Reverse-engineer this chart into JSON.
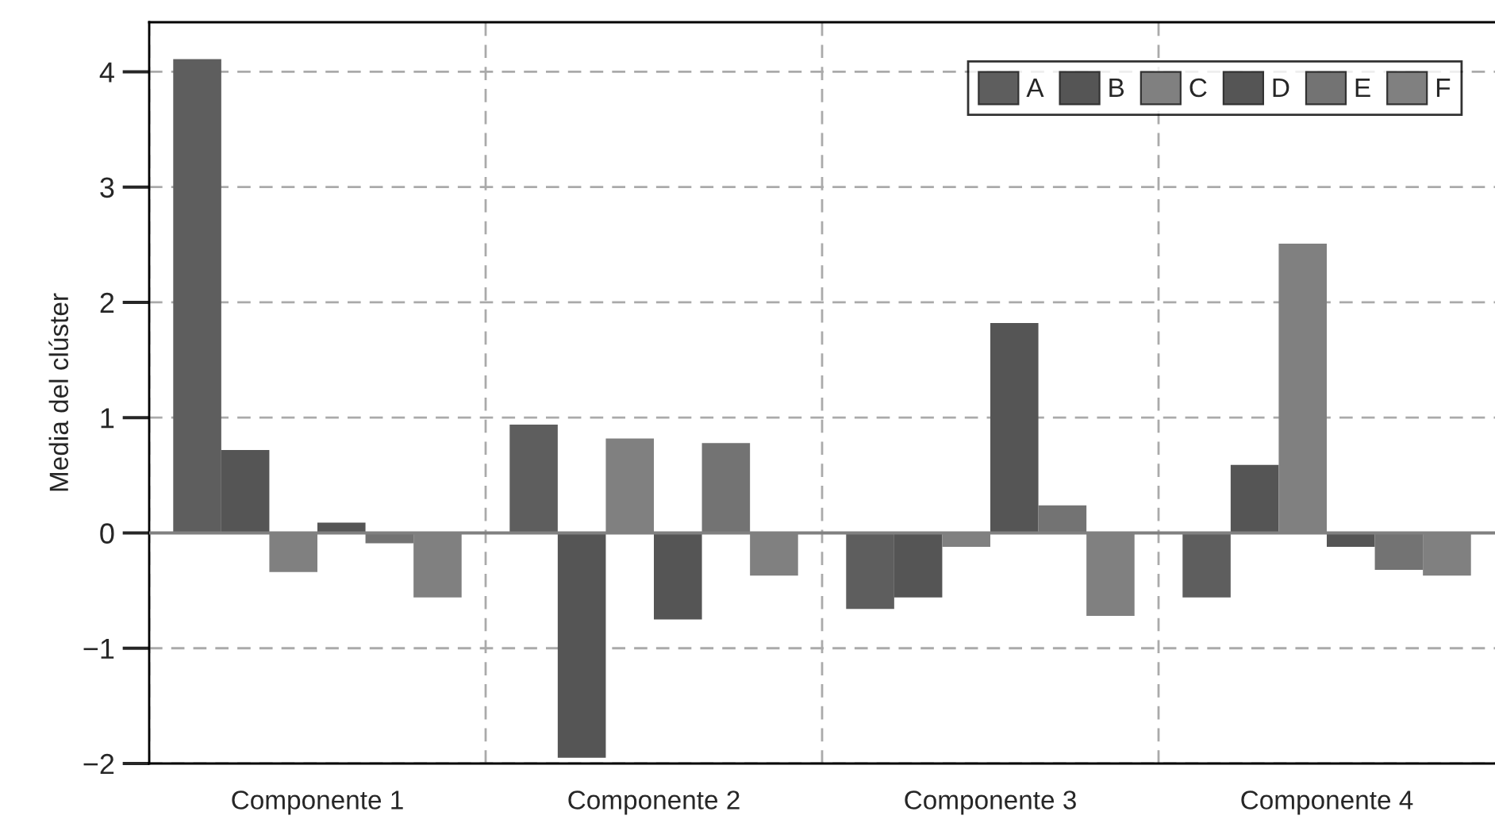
{
  "chart_data": {
    "type": "bar",
    "ylabel": "Media del clúster",
    "categories": [
      "Componente 1",
      "Componente 2",
      "Componente 3",
      "Componente 4"
    ],
    "series": [
      {
        "name": "A",
        "color": "#5e5e5e",
        "values": [
          4.11,
          0.94,
          -0.66,
          -0.56
        ]
      },
      {
        "name": "B",
        "color": "#555555",
        "values": [
          0.72,
          -1.95,
          -0.56,
          0.59
        ]
      },
      {
        "name": "C",
        "color": "#808080",
        "values": [
          -0.34,
          0.82,
          -0.12,
          2.51
        ]
      },
      {
        "name": "D",
        "color": "#555555",
        "values": [
          0.09,
          -0.75,
          1.82,
          -0.12
        ]
      },
      {
        "name": "E",
        "color": "#737373",
        "values": [
          -0.09,
          0.78,
          0.24,
          -0.32
        ]
      },
      {
        "name": "F",
        "color": "#808080",
        "values": [
          -0.56,
          -0.37,
          -0.72,
          -0.37
        ]
      }
    ],
    "ylim": [
      -2,
      4.43
    ],
    "yticks": [
      {
        "value": -2,
        "label": "−2"
      },
      {
        "value": -1,
        "label": "−1"
      },
      0,
      1,
      2,
      3,
      4
    ],
    "ref_lines": [
      {
        "axis": "y",
        "value": 0,
        "color": "#808080"
      }
    ],
    "grid": true,
    "legend": "top right"
  }
}
